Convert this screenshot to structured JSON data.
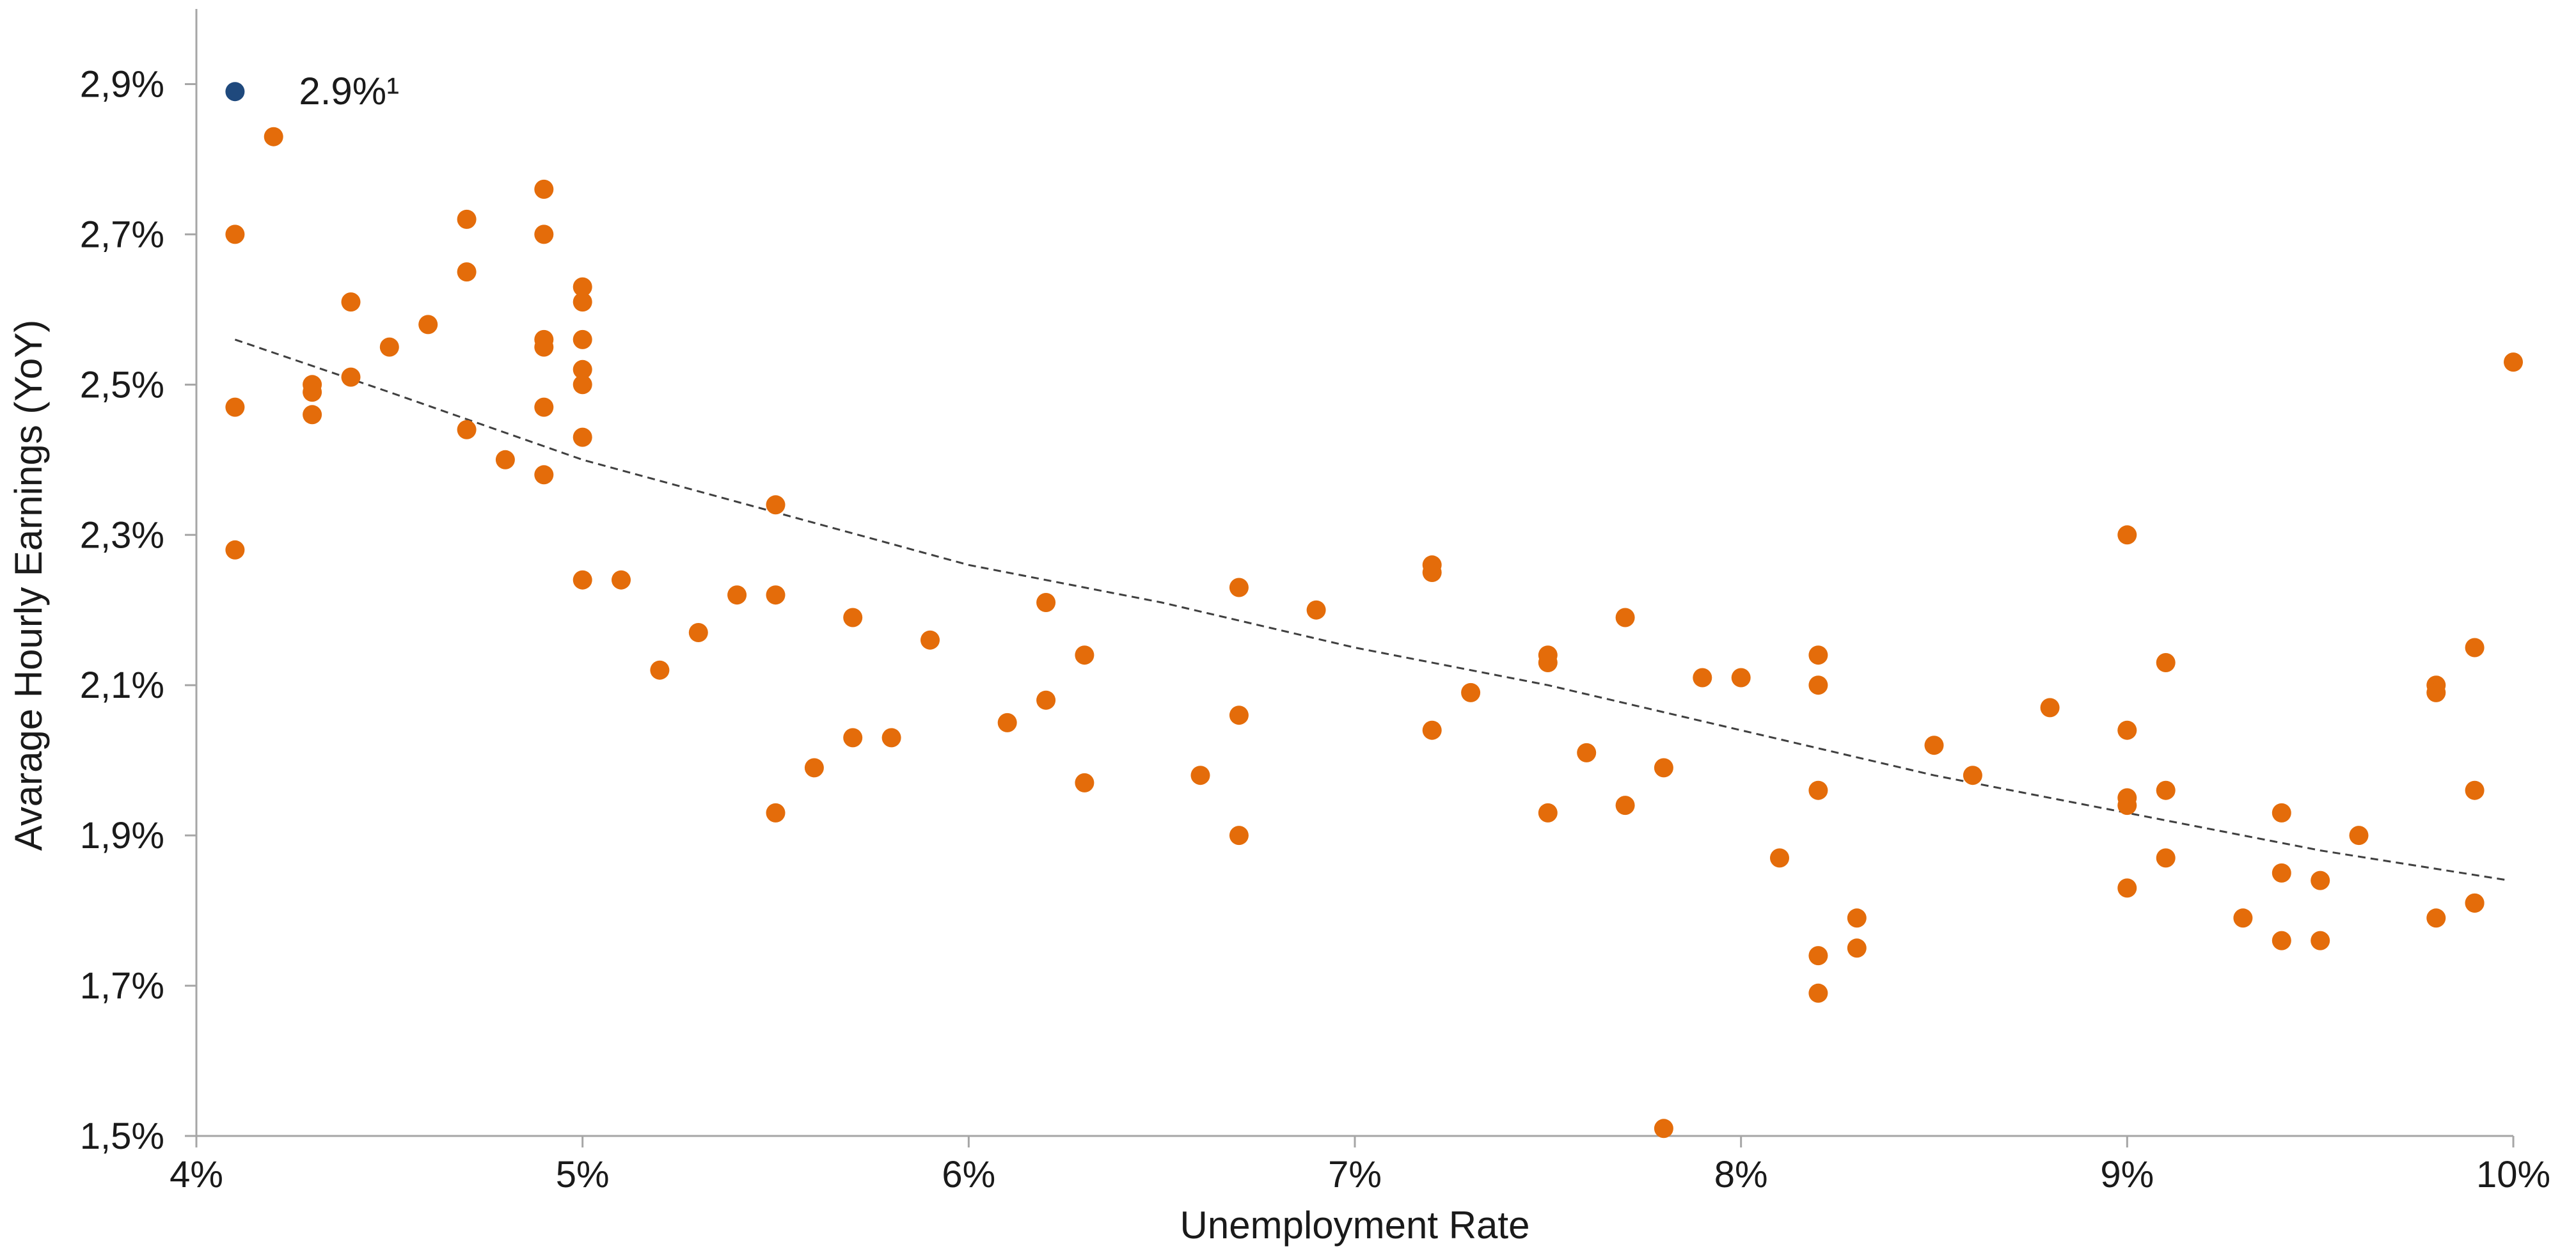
{
  "chart_data": {
    "type": "scatter",
    "title": "",
    "xlabel": "Unemployment Rate",
    "ylabel": "Avarage Hourly Earnings (YoY)",
    "xlim": [
      4,
      10
    ],
    "ylim": [
      1.5,
      3.0
    ],
    "x_ticks": [
      {
        "value": 4,
        "label": "4%"
      },
      {
        "value": 5,
        "label": "5%"
      },
      {
        "value": 6,
        "label": "6%"
      },
      {
        "value": 7,
        "label": "7%"
      },
      {
        "value": 8,
        "label": "8%"
      },
      {
        "value": 9,
        "label": "9%"
      },
      {
        "value": 10,
        "label": "10%"
      }
    ],
    "y_ticks": [
      {
        "value": 1.5,
        "label": "1,5%"
      },
      {
        "value": 1.7,
        "label": "1,7%"
      },
      {
        "value": 1.9,
        "label": "1,9%"
      },
      {
        "value": 2.1,
        "label": "2,1%"
      },
      {
        "value": 2.3,
        "label": "2,3%"
      },
      {
        "value": 2.5,
        "label": "2,5%"
      },
      {
        "value": 2.7,
        "label": "2,7%"
      },
      {
        "value": 2.9,
        "label": "2,9%"
      }
    ],
    "grid": false,
    "colors": {
      "series": "#E46C0A",
      "highlight": "#1F497D",
      "trend": "#404040",
      "axis": "#A6A6A6"
    },
    "highlight": {
      "x": 4.1,
      "y": 2.89,
      "label": "2.9%¹"
    },
    "trendline": {
      "style": "dashed",
      "x": [
        4.1,
        4.5,
        5.0,
        5.5,
        6.0,
        6.5,
        7.0,
        7.5,
        8.0,
        8.5,
        9.0,
        9.5,
        9.99
      ],
      "y": [
        2.56,
        2.49,
        2.4,
        2.33,
        2.26,
        2.21,
        2.15,
        2.1,
        2.04,
        1.98,
        1.93,
        1.88,
        1.84
      ]
    },
    "series": [
      {
        "points": [
          [
            4.1,
            2.7
          ],
          [
            4.1,
            2.47
          ],
          [
            4.1,
            2.28
          ],
          [
            4.2,
            2.83
          ],
          [
            4.3,
            2.5
          ],
          [
            4.3,
            2.49
          ],
          [
            4.3,
            2.46
          ],
          [
            4.4,
            2.61
          ],
          [
            4.4,
            2.51
          ],
          [
            4.5,
            2.55
          ],
          [
            4.6,
            2.58
          ],
          [
            4.7,
            2.72
          ],
          [
            4.7,
            2.65
          ],
          [
            4.7,
            2.44
          ],
          [
            4.8,
            2.4
          ],
          [
            4.9,
            2.76
          ],
          [
            4.9,
            2.7
          ],
          [
            4.9,
            2.56
          ],
          [
            4.9,
            2.55
          ],
          [
            4.9,
            2.47
          ],
          [
            4.9,
            2.38
          ],
          [
            5.0,
            2.63
          ],
          [
            5.0,
            2.61
          ],
          [
            5.0,
            2.56
          ],
          [
            5.0,
            2.52
          ],
          [
            5.0,
            2.5
          ],
          [
            5.0,
            2.43
          ],
          [
            5.0,
            2.24
          ],
          [
            5.1,
            2.24
          ],
          [
            5.2,
            2.12
          ],
          [
            5.3,
            2.17
          ],
          [
            5.4,
            2.22
          ],
          [
            5.5,
            2.34
          ],
          [
            5.5,
            2.22
          ],
          [
            5.5,
            1.93
          ],
          [
            5.6,
            1.99
          ],
          [
            5.7,
            2.19
          ],
          [
            5.7,
            2.03
          ],
          [
            5.8,
            2.03
          ],
          [
            5.9,
            2.16
          ],
          [
            6.1,
            2.05
          ],
          [
            6.2,
            2.21
          ],
          [
            6.2,
            2.08
          ],
          [
            6.3,
            2.14
          ],
          [
            6.3,
            1.97
          ],
          [
            6.6,
            1.98
          ],
          [
            6.7,
            2.23
          ],
          [
            6.7,
            2.06
          ],
          [
            6.7,
            1.9
          ],
          [
            6.9,
            2.2
          ],
          [
            7.2,
            2.26
          ],
          [
            7.2,
            2.25
          ],
          [
            7.2,
            2.04
          ],
          [
            7.3,
            2.09
          ],
          [
            7.5,
            2.14
          ],
          [
            7.5,
            2.13
          ],
          [
            7.5,
            1.93
          ],
          [
            7.6,
            2.01
          ],
          [
            7.7,
            2.19
          ],
          [
            7.7,
            1.94
          ],
          [
            7.8,
            1.99
          ],
          [
            7.8,
            1.51
          ],
          [
            7.9,
            2.11
          ],
          [
            8.0,
            2.11
          ],
          [
            8.1,
            1.87
          ],
          [
            8.2,
            2.14
          ],
          [
            8.2,
            2.1
          ],
          [
            8.2,
            1.96
          ],
          [
            8.2,
            1.74
          ],
          [
            8.2,
            1.69
          ],
          [
            8.3,
            1.79
          ],
          [
            8.3,
            1.75
          ],
          [
            8.5,
            2.02
          ],
          [
            8.6,
            1.98
          ],
          [
            8.8,
            2.07
          ],
          [
            9.0,
            2.3
          ],
          [
            9.0,
            2.04
          ],
          [
            9.0,
            1.95
          ],
          [
            9.0,
            1.94
          ],
          [
            9.0,
            1.83
          ],
          [
            9.1,
            2.13
          ],
          [
            9.1,
            1.96
          ],
          [
            9.1,
            1.87
          ],
          [
            9.3,
            1.79
          ],
          [
            9.4,
            1.93
          ],
          [
            9.4,
            1.85
          ],
          [
            9.4,
            1.76
          ],
          [
            9.5,
            1.84
          ],
          [
            9.5,
            1.76
          ],
          [
            9.6,
            1.9
          ],
          [
            9.8,
            2.1
          ],
          [
            9.8,
            2.09
          ],
          [
            9.8,
            1.79
          ],
          [
            9.9,
            2.15
          ],
          [
            9.9,
            1.96
          ],
          [
            9.9,
            1.81
          ],
          [
            9.9,
            1.81
          ],
          [
            10.0,
            2.53
          ]
        ]
      }
    ]
  }
}
